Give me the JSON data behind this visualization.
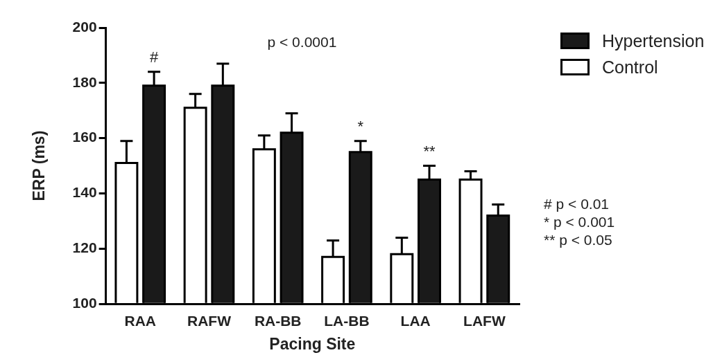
{
  "chart_data": {
    "type": "bar",
    "xlabel": "Pacing Site",
    "ylabel": "ERP (ms)",
    "categories": [
      "RAA",
      "RAFW",
      "RA-BB",
      "LA-BB",
      "LAA",
      "LAFW"
    ],
    "series": [
      {
        "name": "Control",
        "color": "#ffffff",
        "values": [
          151,
          171,
          156,
          117,
          118,
          145
        ],
        "errors": [
          [
            151,
            159
          ],
          [
            171,
            176
          ],
          [
            156,
            161
          ],
          [
            117,
            123
          ],
          [
            118,
            124
          ],
          [
            145,
            148
          ]
        ]
      },
      {
        "name": "Hypertension",
        "color": "#1a1a1a",
        "values": [
          179,
          179,
          162,
          155,
          145,
          132
        ],
        "errors": [
          [
            179,
            184
          ],
          [
            179,
            187
          ],
          [
            162,
            169
          ],
          [
            155,
            159
          ],
          [
            145,
            150
          ],
          [
            132,
            136
          ]
        ]
      }
    ],
    "ylim": [
      100,
      200
    ],
    "yticks": [
      100,
      120,
      140,
      160,
      180,
      200
    ],
    "grid": false,
    "legend": "top right",
    "annotations": [
      "p < 0.0001",
      "#",
      "*",
      "**",
      "# p < 0.01",
      "* p < 0.001",
      "** p < 0.05"
    ]
  }
}
